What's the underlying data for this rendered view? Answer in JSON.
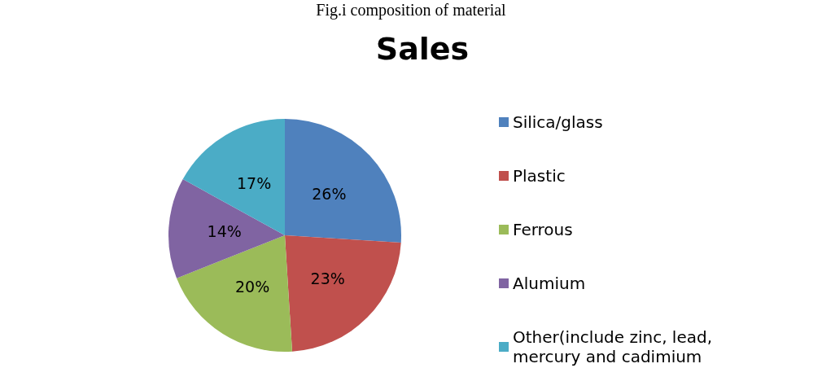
{
  "chart_data": {
    "type": "pie",
    "title": "Sales",
    "annotations": [
      "Fig.i composition of material"
    ],
    "categories": [
      "Silica/glass",
      "Plastic",
      "Ferrous",
      "Alumium",
      "Other(include zinc, lead, mercury and cadimium"
    ],
    "values": [
      26,
      23,
      20,
      14,
      17
    ],
    "colors": [
      "#4f81bd",
      "#c0504d",
      "#9bbb59",
      "#8064a2",
      "#4bacc6"
    ],
    "value_labels": [
      "26%",
      "23%",
      "20%",
      "14%",
      "17%"
    ],
    "legend": "right"
  }
}
